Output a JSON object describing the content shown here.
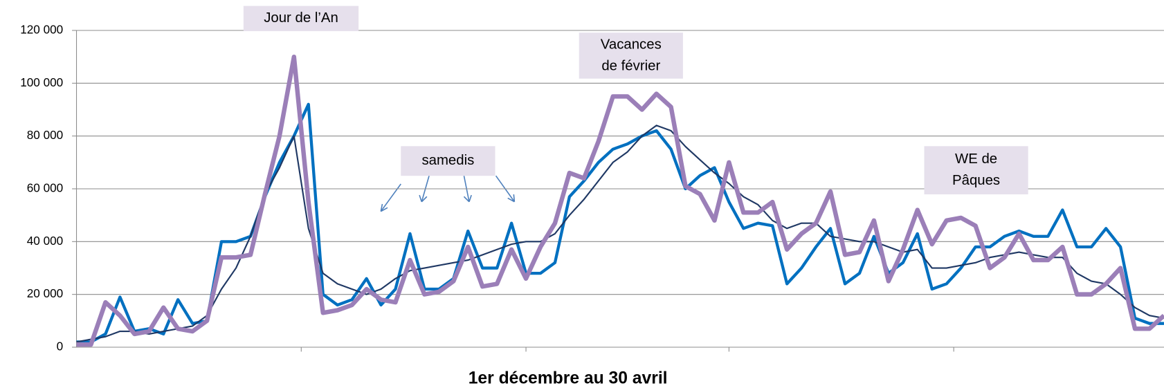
{
  "chart_data": {
    "type": "line",
    "x_axis_label": "1er décembre  au 30 avril",
    "annotations": [
      [
        "Jour de l’An"
      ],
      [
        "Vacances",
        "de février"
      ],
      [
        "samedis"
      ],
      [
        "WE de",
        "Pâques"
      ]
    ],
    "x": [
      0,
      2,
      4,
      6,
      8,
      10,
      12,
      14,
      16,
      18,
      20,
      22,
      24,
      26,
      28,
      30,
      32,
      34,
      36,
      38,
      40,
      42,
      44,
      46,
      48,
      50,
      52,
      54,
      56,
      58,
      60,
      62,
      64,
      66,
      68,
      70,
      72,
      74,
      76,
      78,
      80,
      82,
      84,
      86,
      88,
      90,
      92,
      94,
      96,
      98,
      100,
      102,
      104,
      106,
      108,
      110,
      112,
      114,
      116,
      118,
      120,
      122,
      124,
      126,
      128,
      130,
      132,
      134,
      136,
      138,
      140,
      142,
      144,
      146,
      148,
      150
    ],
    "xlim": [
      0,
      150
    ],
    "xticks": [
      31,
      62,
      90,
      121
    ],
    "ylim": [
      0,
      120000
    ],
    "yticks": [
      0,
      {
        "value": 20000,
        "label": "20 000"
      },
      {
        "value": 40000,
        "label": "40 000"
      },
      {
        "value": 60000,
        "label": "60 000"
      },
      {
        "value": 80000,
        "label": "80 000"
      },
      {
        "value": 100000,
        "label": "100 000"
      },
      {
        "value": 120000,
        "label": "120 000"
      }
    ],
    "grid": true,
    "series": [
      {
        "color": "#0070c0",
        "width": 4,
        "values": [
          2000,
          2000,
          5000,
          19000,
          6000,
          7000,
          5000,
          18000,
          9000,
          10000,
          40000,
          40000,
          42000,
          57000,
          70000,
          80000,
          92000,
          20000,
          16000,
          18000,
          26000,
          16000,
          22000,
          43000,
          22000,
          22000,
          26000,
          44000,
          30000,
          30000,
          47000,
          28000,
          28000,
          32000,
          57000,
          63000,
          70000,
          75000,
          77000,
          80000,
          82000,
          75000,
          60000,
          65000,
          68000,
          55000,
          45000,
          47000,
          46000,
          24000,
          30000,
          38000,
          45000,
          24000,
          28000,
          42000,
          28000,
          32000,
          43000,
          22000,
          24000,
          30000,
          38000,
          38000,
          42000,
          44000,
          42000,
          42000,
          52000,
          38000,
          38000,
          45000,
          38000,
          11000,
          9000,
          9000
        ]
      },
      {
        "color": "#1f3864",
        "width": 2,
        "values": [
          2000,
          3000,
          4000,
          6000,
          6000,
          5000,
          6000,
          7000,
          8000,
          12000,
          22000,
          30000,
          42000,
          58000,
          68000,
          80000,
          45000,
          28000,
          24000,
          22000,
          20000,
          22000,
          26000,
          29000,
          30000,
          31000,
          32000,
          33000,
          35000,
          37000,
          39000,
          40000,
          40000,
          43000,
          50000,
          56000,
          63000,
          70000,
          74000,
          80000,
          84000,
          82000,
          76000,
          71000,
          66000,
          62000,
          57000,
          54000,
          48000,
          45000,
          47000,
          47000,
          42000,
          41000,
          40000,
          40000,
          38000,
          36000,
          37000,
          30000,
          30000,
          31000,
          32000,
          34000,
          35000,
          36000,
          35000,
          34000,
          34000,
          28000,
          25000,
          24000,
          20000,
          15000,
          12000,
          11000
        ]
      },
      {
        "color": "#9b7fb8",
        "width": 6,
        "values": [
          1000,
          1000,
          17000,
          12000,
          5000,
          6000,
          15000,
          7000,
          6000,
          10000,
          34000,
          34000,
          35000,
          58000,
          80000,
          110000,
          55000,
          13000,
          14000,
          16000,
          22000,
          18000,
          17000,
          33000,
          20000,
          21000,
          25000,
          38000,
          23000,
          24000,
          37000,
          26000,
          38000,
          47000,
          66000,
          64000,
          78000,
          95000,
          95000,
          90000,
          96000,
          91000,
          61000,
          58000,
          48000,
          70000,
          51000,
          51000,
          55000,
          37000,
          43000,
          47000,
          59000,
          35000,
          36000,
          48000,
          25000,
          37000,
          52000,
          39000,
          48000,
          49000,
          46000,
          30000,
          34000,
          43000,
          33000,
          33000,
          38000,
          20000,
          20000,
          24000,
          30000,
          7000,
          7000,
          12000
        ]
      }
    ]
  }
}
